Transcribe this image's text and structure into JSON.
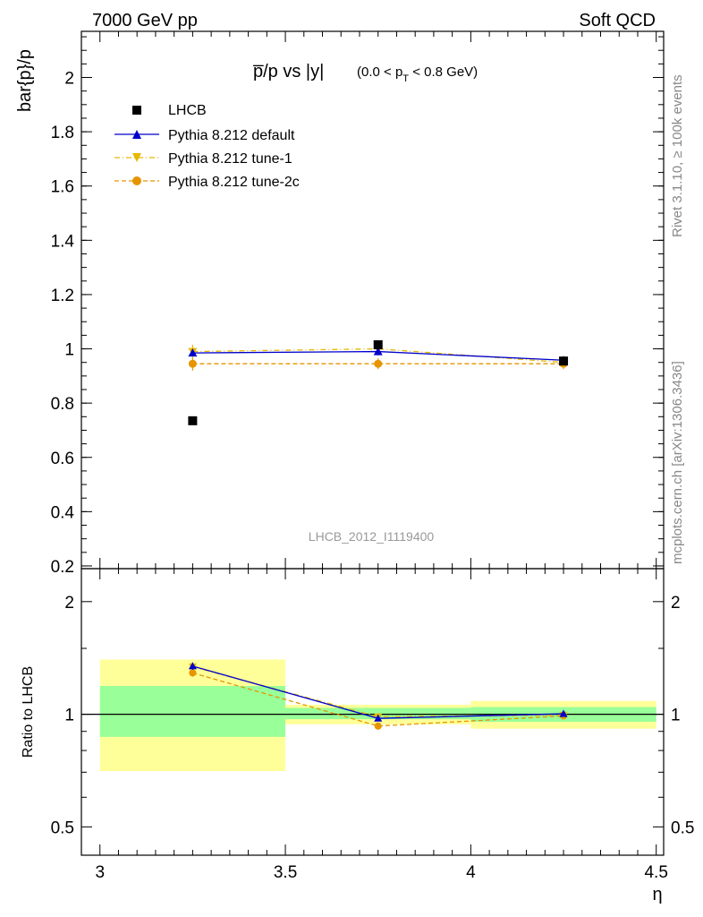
{
  "header": {
    "left": "7000 GeV pp",
    "right": "Soft QCD"
  },
  "side_labels": {
    "rivet": "Rivet 3.1.10, ≥ 100k events",
    "mcplots": "mcplots.cern.ch [arXiv:1306.3436]"
  },
  "chart_data": [
    {
      "type": "scatter",
      "title_main": "p̅/p vs |y|",
      "title_cut": "(0.0 < p",
      "title_cut_sub": "T",
      "title_cut_end": " < 0.8 GeV)",
      "ylabel": "bar{p}/p",
      "analysis_id": "LHCB_2012_I1119400",
      "xlim": [
        2.95,
        4.52
      ],
      "ylim": [
        0.19,
        2.17
      ],
      "yticks": [
        0.2,
        0.4,
        0.6,
        0.8,
        1.0,
        1.2,
        1.4,
        1.6,
        1.8,
        2.0
      ],
      "ytick_labels": [
        "0.2",
        "0.4",
        "0.6",
        "0.8",
        "1",
        "1.2",
        "1.4",
        "1.6",
        "1.8",
        "2"
      ],
      "legend_position": "top-left",
      "x": [
        3.25,
        3.75,
        4.25
      ],
      "series": [
        {
          "name": "LHCB",
          "marker": "square",
          "color": "#000000",
          "style": "none",
          "values": [
            0.735,
            1.015,
            0.955
          ]
        },
        {
          "name": "Pythia 8.212 default",
          "marker": "triangle-up",
          "color": "#0000cc",
          "style": "solid",
          "values": [
            0.985,
            0.99,
            0.958
          ],
          "err": [
            0.012,
            0.012,
            0.012
          ]
        },
        {
          "name": "Pythia 8.212 tune-1",
          "marker": "triangle-down",
          "color": "#e6b800",
          "style": "dashdot",
          "values": [
            0.99,
            1.0,
            0.95
          ],
          "err": [
            0.025,
            0.025,
            0.02
          ]
        },
        {
          "name": "Pythia 8.212 tune-2c",
          "marker": "circle",
          "color": "#e69500",
          "style": "dashed",
          "values": [
            0.945,
            0.945,
            0.945
          ],
          "err": [
            0.025,
            0.02,
            0.02
          ]
        }
      ]
    },
    {
      "type": "scatter",
      "ylabel": "Ratio to LHCB",
      "xlabel": "η",
      "xlim": [
        2.95,
        4.52
      ],
      "ylim": [
        0.42,
        2.45
      ],
      "log_y": true,
      "yticks": [
        0.5,
        1,
        2
      ],
      "ytick_labels": [
        "0.5",
        "1",
        "2"
      ],
      "xticks": [
        3,
        3.5,
        4,
        4.5
      ],
      "xtick_labels": [
        "3",
        "3.5",
        "4",
        "4.5"
      ],
      "bands": [
        {
          "x0": 3.0,
          "x1": 3.5,
          "inner": [
            0.87,
            1.19
          ],
          "outer": [
            0.705,
            1.4
          ]
        },
        {
          "x0": 3.5,
          "x1": 4.0,
          "inner": [
            0.97,
            1.04
          ],
          "outer": [
            0.94,
            1.06
          ]
        },
        {
          "x0": 4.0,
          "x1": 4.5,
          "inner": [
            0.955,
            1.045
          ],
          "outer": [
            0.915,
            1.085
          ]
        }
      ],
      "band_colors": {
        "inner": "#99ff99",
        "outer": "#ffff99"
      },
      "x": [
        3.25,
        3.75,
        4.25
      ],
      "series": [
        {
          "name": "Pythia 8.212 default",
          "color": "#0000cc",
          "marker": "triangle-up",
          "style": "solid",
          "values": [
            1.345,
            0.975,
            1.003
          ],
          "err": [
            0.03,
            0.015,
            0.015
          ]
        },
        {
          "name": "Pythia 8.212 tune-1",
          "color": "#e6b800",
          "marker": "triangle-down",
          "style": "dashdot",
          "values": [
            1.34,
            0.985,
            0.995
          ],
          "err": [
            0.03,
            0.02,
            0.02
          ]
        },
        {
          "name": "Pythia 8.212 tune-2c",
          "color": "#e69500",
          "marker": "circle",
          "style": "dashed",
          "values": [
            1.29,
            0.93,
            0.99
          ],
          "err": [
            0.03,
            0.02,
            0.02
          ]
        }
      ]
    }
  ]
}
